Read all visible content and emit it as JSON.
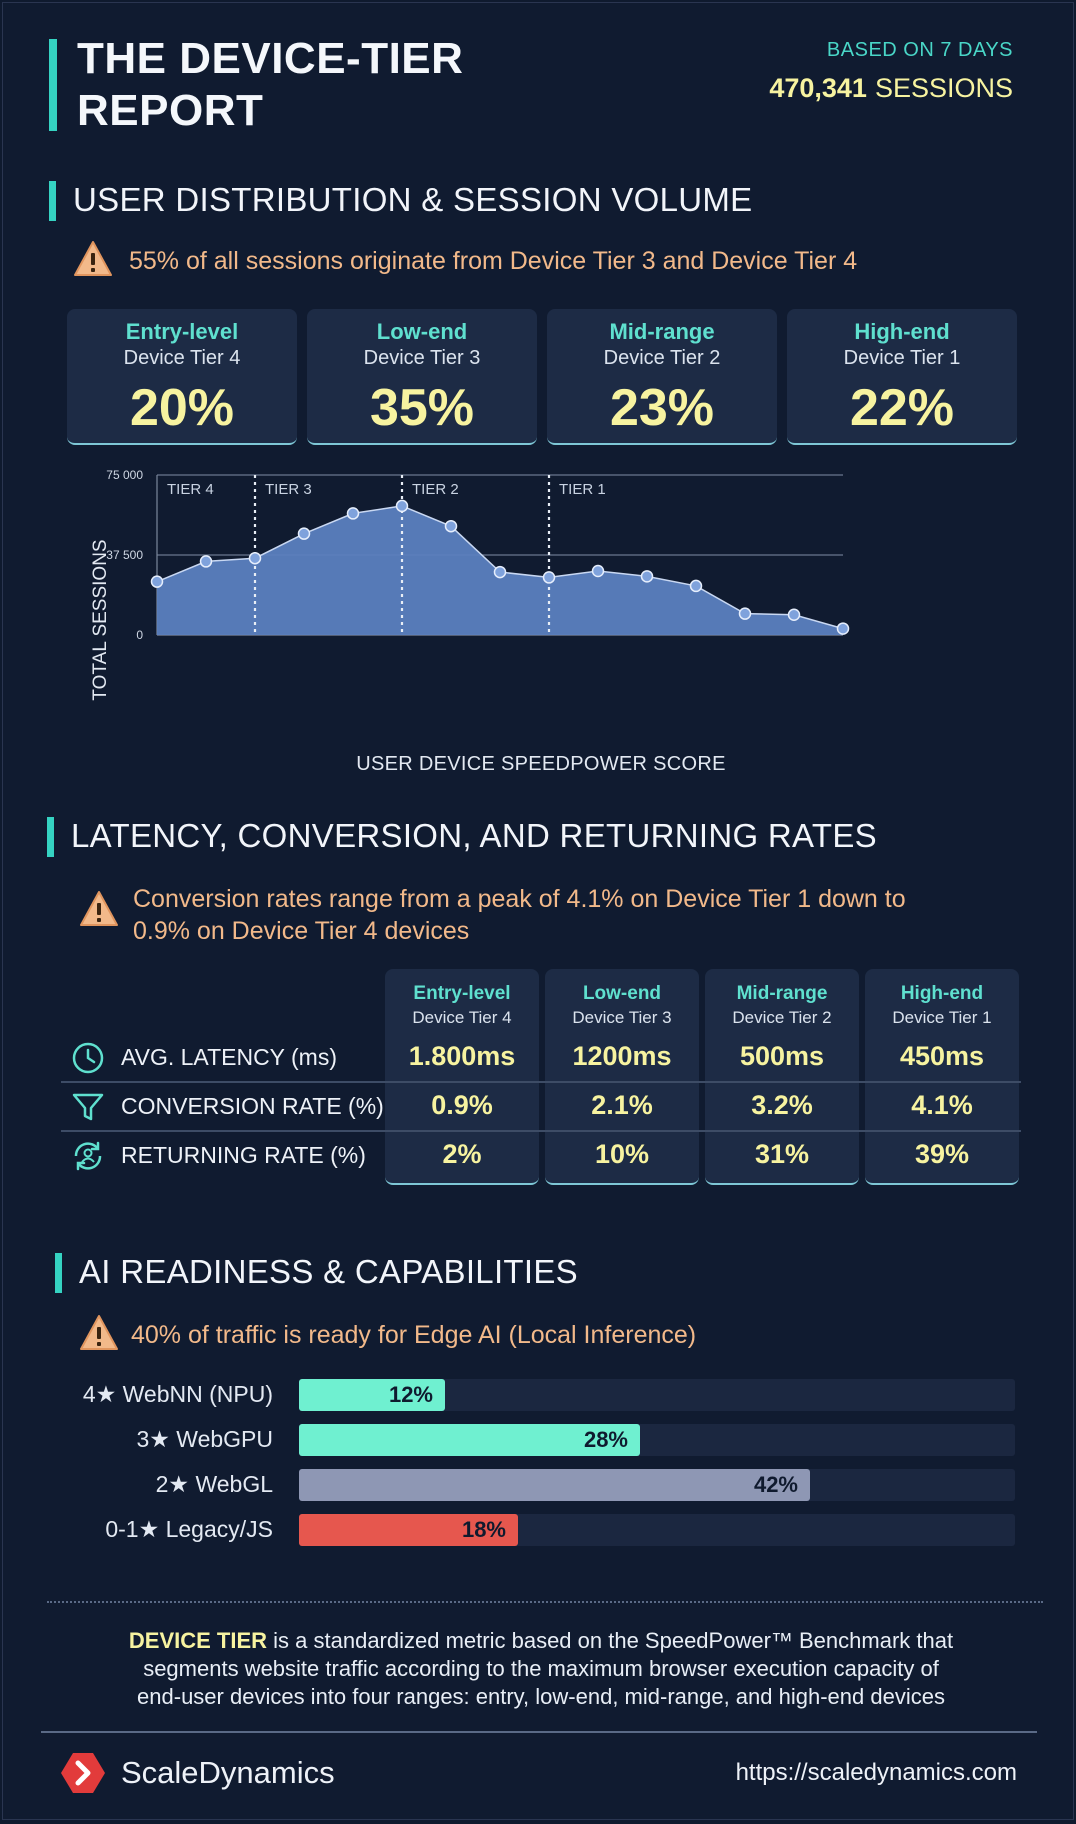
{
  "header": {
    "title_line1": "THE DEVICE-TIER",
    "title_line2": "REPORT",
    "based_on": "BASED ON 7 DAYS",
    "sessions_count": "470,341",
    "sessions_label": "SESSIONS"
  },
  "section1": {
    "title": "USER DISTRIBUTION & SESSION VOLUME",
    "warning": "55% of all sessions originate from Device Tier 3 and Device Tier 4"
  },
  "tiers": [
    {
      "level": "Entry-level",
      "tier": "Device Tier 4",
      "share": "20%"
    },
    {
      "level": "Low-end",
      "tier": "Device Tier 3",
      "share": "35%"
    },
    {
      "level": "Mid-range",
      "tier": "Device Tier 2",
      "share": "23%"
    },
    {
      "level": "High-end",
      "tier": "Device Tier 1",
      "share": "22%"
    }
  ],
  "chart_data": {
    "type": "area",
    "ylabel": "TOTAL SESSIONS",
    "xlabel": "USER DEVICE SPEEDPOWER SCORE",
    "ylim": [
      0,
      75000
    ],
    "yticks": [
      "75 000",
      "37 500",
      "0"
    ],
    "ytick_values": [
      75000,
      37500,
      0
    ],
    "values": [
      25000,
      34500,
      36000,
      47500,
      57000,
      60500,
      51000,
      29500,
      27000,
      30000,
      27500,
      23000,
      10000,
      9500,
      3000
    ],
    "tier_markers": [
      {
        "label": "TIER 4",
        "index": 0
      },
      {
        "label": "TIER 3",
        "index": 2
      },
      {
        "label": "TIER 2",
        "index": 5
      },
      {
        "label": "TIER 1",
        "index": 8
      }
    ],
    "grid": true,
    "color": "#5b7fbf"
  },
  "section2": {
    "title": "LATENCY, CONVERSION, AND RETURNING RATES",
    "warning_line1": "Conversion rates range from a peak of 4.1% on Device Tier 1 down to",
    "warning_line2": "0.9% on Device Tier 4 devices"
  },
  "metrics_table": {
    "columns": [
      {
        "level": "Entry-level",
        "tier": "Device Tier 4"
      },
      {
        "level": "Low-end",
        "tier": "Device Tier 3"
      },
      {
        "level": "Mid-range",
        "tier": "Device Tier 2"
      },
      {
        "level": "High-end",
        "tier": "Device Tier 1"
      }
    ],
    "rows": [
      {
        "label": "AVG. LATENCY (ms)",
        "icon": "clock-icon",
        "values": [
          "1.800ms",
          "1200ms",
          "500ms",
          "450ms"
        ]
      },
      {
        "label": "CONVERSION RATE (%)",
        "icon": "funnel-icon",
        "values": [
          "0.9%",
          "2.1%",
          "3.2%",
          "4.1%"
        ]
      },
      {
        "label": "RETURNING RATE (%)",
        "icon": "returning-user-icon",
        "values": [
          "2%",
          "10%",
          "31%",
          "39%"
        ]
      }
    ]
  },
  "section3": {
    "title": "AI READINESS & CAPABILITIES",
    "warning": "40% of traffic is ready for Edge AI (Local Inference)"
  },
  "ai_bars": [
    {
      "label": "4★ WebNN (NPU)",
      "value": "12%",
      "fraction": 0.12,
      "color": "#6ff0d0"
    },
    {
      "label": "3★ WebGPU",
      "value": "28%",
      "fraction": 0.28,
      "color": "#6ff0d0"
    },
    {
      "label": "2★ WebGL",
      "value": "42%",
      "fraction": 0.42,
      "color": "#8e97b4"
    },
    {
      "label": "0-1★ Legacy/JS",
      "value": "18%",
      "fraction": 0.18,
      "color": "#e6574e"
    }
  ],
  "footer": {
    "term": "DEVICE TIER",
    "definition_1": " is a standardized metric based on the SpeedPower™ Benchmark that",
    "definition_2": "segments website traffic according to the maximum browser execution capacity of",
    "definition_3": "end-user devices into four ranges: entry, low-end, mid-range, and high-end devices",
    "brand": "ScaleDynamics",
    "url": "https://scaledynamics.com"
  },
  "colors": {
    "accent": "#35d3c2",
    "highlight": "#f7f3a0",
    "warning": "#f2b98a",
    "background": "#101b30"
  }
}
